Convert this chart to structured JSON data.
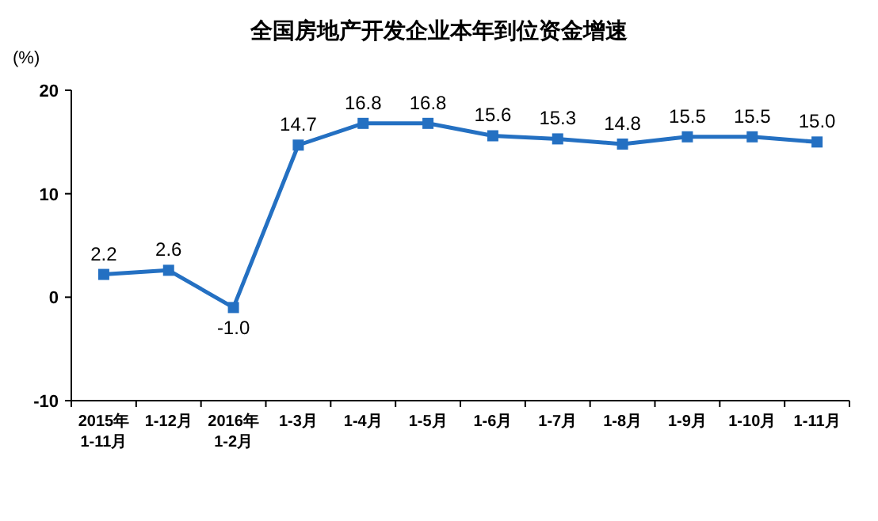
{
  "chart_data": {
    "type": "line",
    "title": "全国房地产开发企业本年到位资金增速",
    "ylabel": "(%)",
    "categories": [
      "2015年\n1-11月",
      "1-12月",
      "2016年\n1-2月",
      "1-3月",
      "1-4月",
      "1-5月",
      "1-6月",
      "1-7月",
      "1-8月",
      "1-9月",
      "1-10月",
      "1-11月"
    ],
    "series": [
      {
        "color": "#2470c2",
        "values": [
          2.2,
          2.6,
          -1.0,
          14.7,
          16.8,
          16.8,
          15.6,
          15.3,
          14.8,
          15.5,
          15.5,
          15.0
        ],
        "value_labels": [
          "2.2",
          "2.6",
          "-1.0",
          "14.7",
          "16.8",
          "16.8",
          "15.6",
          "15.3",
          "14.8",
          "15.5",
          "15.5",
          "15.0"
        ]
      }
    ],
    "ylim": [
      -10,
      20
    ],
    "yticks": [
      -10,
      0,
      10,
      20
    ],
    "grid": false,
    "marker": "square"
  }
}
